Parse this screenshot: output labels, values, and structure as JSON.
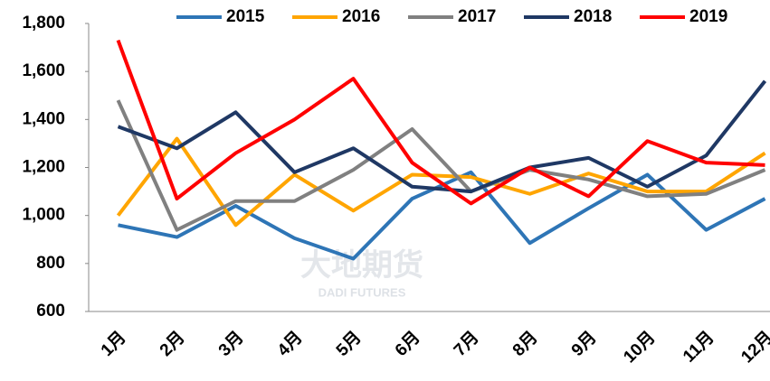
{
  "chart_data": {
    "type": "line",
    "categories": [
      "1月",
      "2月",
      "3月",
      "4月",
      "5月",
      "6月",
      "7月",
      "8月",
      "9月",
      "10月",
      "11月",
      "12月"
    ],
    "series": [
      {
        "name": "2015",
        "color": "#2e75b6",
        "values": [
          960,
          910,
          1040,
          905,
          820,
          1070,
          1180,
          885,
          1030,
          1170,
          940,
          1070
        ]
      },
      {
        "name": "2016",
        "color": "#ffa500",
        "values": [
          1000,
          1320,
          960,
          1170,
          1020,
          1170,
          1160,
          1090,
          1175,
          1100,
          1100,
          1260
        ]
      },
      {
        "name": "2017",
        "color": "#808080",
        "values": [
          1480,
          940,
          1060,
          1060,
          1190,
          1360,
          1100,
          1190,
          1150,
          1080,
          1090,
          1190
        ]
      },
      {
        "name": "2018",
        "color": "#1f3864",
        "values": [
          1370,
          1280,
          1430,
          1180,
          1280,
          1120,
          1100,
          1200,
          1240,
          1120,
          1250,
          1560
        ]
      },
      {
        "name": "2019",
        "color": "#ff0000",
        "values": [
          1730,
          1070,
          1260,
          1400,
          1570,
          1220,
          1050,
          1200,
          1080,
          1310,
          1220,
          1210
        ]
      }
    ],
    "ylim": [
      600,
      1800
    ],
    "yticks": [
      600,
      800,
      {
        "value": 1000,
        "label": "1,000"
      },
      {
        "value": 1200,
        "label": "1,200"
      },
      {
        "value": 1400,
        "label": "1,400"
      },
      {
        "value": 1600,
        "label": "1,600"
      },
      {
        "value": 1800,
        "label": "1,800"
      }
    ],
    "legend": "top",
    "watermark": {
      "name": "大地期货",
      "en": "DADI FUTURES"
    }
  }
}
